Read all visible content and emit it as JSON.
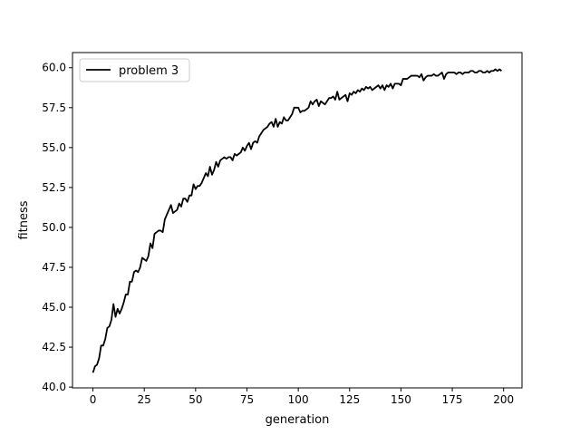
{
  "chart_data": {
    "type": "line",
    "title": "",
    "xlabel": "generation",
    "ylabel": "fitness",
    "xlim": [
      -9.95,
      208.95
    ],
    "ylim": [
      39.95,
      60.95
    ],
    "xticks": [
      0,
      25,
      50,
      75,
      100,
      125,
      150,
      175,
      200
    ],
    "xtick_labels": [
      "0",
      "25",
      "50",
      "75",
      "100",
      "125",
      "150",
      "175",
      "200"
    ],
    "yticks": [
      40.0,
      42.5,
      45.0,
      47.5,
      50.0,
      52.5,
      55.0,
      57.5,
      60.0
    ],
    "ytick_labels": [
      "40.0",
      "42.5",
      "45.0",
      "47.5",
      "50.0",
      "52.5",
      "55.0",
      "57.5",
      "60.0"
    ],
    "grid": false,
    "legend": {
      "position": "upper-left"
    },
    "series": [
      {
        "name": "problem 3",
        "color": "#000000",
        "x": [
          0,
          1,
          2,
          3,
          4,
          5,
          6,
          7,
          8,
          9,
          10,
          11,
          12,
          13,
          14,
          15,
          16,
          17,
          18,
          19,
          20,
          21,
          22,
          23,
          24,
          25,
          26,
          27,
          28,
          29,
          30,
          31,
          32,
          33,
          34,
          35,
          36,
          37,
          38,
          39,
          40,
          41,
          42,
          43,
          44,
          45,
          46,
          47,
          48,
          49,
          50,
          51,
          52,
          53,
          54,
          55,
          56,
          57,
          58,
          59,
          60,
          61,
          62,
          63,
          64,
          65,
          66,
          67,
          68,
          69,
          70,
          71,
          72,
          73,
          74,
          75,
          76,
          77,
          78,
          79,
          80,
          81,
          82,
          83,
          84,
          85,
          86,
          87,
          88,
          89,
          90,
          91,
          92,
          93,
          94,
          95,
          96,
          97,
          98,
          99,
          100,
          101,
          102,
          103,
          104,
          105,
          106,
          107,
          108,
          109,
          110,
          111,
          112,
          113,
          114,
          115,
          116,
          117,
          118,
          119,
          120,
          121,
          122,
          123,
          124,
          125,
          126,
          127,
          128,
          129,
          130,
          131,
          132,
          133,
          134,
          135,
          136,
          137,
          138,
          139,
          140,
          141,
          142,
          143,
          144,
          145,
          146,
          147,
          148,
          149,
          150,
          151,
          152,
          153,
          154,
          155,
          156,
          157,
          158,
          159,
          160,
          161,
          162,
          163,
          164,
          165,
          166,
          167,
          168,
          169,
          170,
          171,
          172,
          173,
          174,
          175,
          176,
          177,
          178,
          179,
          180,
          181,
          182,
          183,
          184,
          185,
          186,
          187,
          188,
          189,
          190,
          191,
          192,
          193,
          194,
          195,
          196,
          197,
          198,
          199
        ],
        "y": [
          40.9,
          41.3,
          41.4,
          41.8,
          42.6,
          42.6,
          43.0,
          43.7,
          43.8,
          44.2,
          45.2,
          44.4,
          44.9,
          44.6,
          44.9,
          45.3,
          45.8,
          45.8,
          46.6,
          46.6,
          47.2,
          47.3,
          47.2,
          47.5,
          48.1,
          48.0,
          47.9,
          48.2,
          49.0,
          48.7,
          49.6,
          49.7,
          49.8,
          49.8,
          49.7,
          50.5,
          50.8,
          51.1,
          51.4,
          50.9,
          51.0,
          51.1,
          51.5,
          51.3,
          51.8,
          51.8,
          51.6,
          52.0,
          52.0,
          52.7,
          52.4,
          52.6,
          52.6,
          52.8,
          53.1,
          53.4,
          53.2,
          53.8,
          53.3,
          53.6,
          54.1,
          53.8,
          54.2,
          54.3,
          54.4,
          54.3,
          54.4,
          54.4,
          54.2,
          54.6,
          54.5,
          54.6,
          54.7,
          55.0,
          54.8,
          55.1,
          55.3,
          54.9,
          55.3,
          55.4,
          55.3,
          55.7,
          55.9,
          56.1,
          56.2,
          56.3,
          56.5,
          56.6,
          56.3,
          56.8,
          56.3,
          56.6,
          56.5,
          56.9,
          56.7,
          56.7,
          56.9,
          57.1,
          57.5,
          57.5,
          57.5,
          57.2,
          57.3,
          57.3,
          57.4,
          57.5,
          57.9,
          57.7,
          57.9,
          58.0,
          57.6,
          57.9,
          57.8,
          57.7,
          57.9,
          58.1,
          58.1,
          58.2,
          58.0,
          58.5,
          58.0,
          58.1,
          58.2,
          58.3,
          57.9,
          58.4,
          58.3,
          58.5,
          58.4,
          58.6,
          58.5,
          58.7,
          58.6,
          58.8,
          58.7,
          58.8,
          58.6,
          58.7,
          58.8,
          58.9,
          58.7,
          58.9,
          58.6,
          58.9,
          58.8,
          59.0,
          58.7,
          59.0,
          59.0,
          59.0,
          58.9,
          59.3,
          59.3,
          59.3,
          59.4,
          59.5,
          59.5,
          59.5,
          59.5,
          59.4,
          59.6,
          59.2,
          59.4,
          59.5,
          59.5,
          59.5,
          59.6,
          59.5,
          59.5,
          59.6,
          59.7,
          59.3,
          59.6,
          59.7,
          59.7,
          59.7,
          59.7,
          59.6,
          59.7,
          59.7,
          59.6,
          59.7,
          59.7,
          59.7,
          59.8,
          59.8,
          59.7,
          59.7,
          59.8,
          59.8,
          59.7,
          59.7,
          59.8,
          59.7,
          59.8,
          59.8,
          59.9,
          59.8,
          59.9,
          59.8
        ]
      }
    ]
  }
}
